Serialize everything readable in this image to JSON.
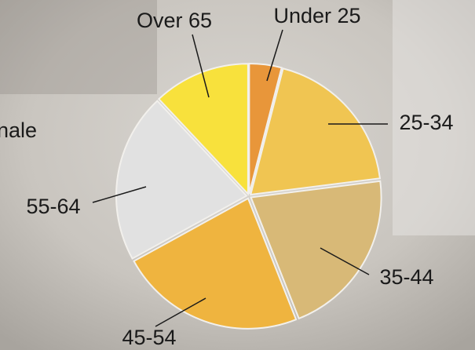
{
  "side_text": "nale",
  "chart_data": {
    "type": "pie",
    "categories": [
      "Under 25",
      "25-34",
      "35-44",
      "45-54",
      "55-64",
      "Over 65"
    ],
    "values": [
      4,
      19,
      21,
      23,
      21,
      12
    ],
    "colors": [
      "#e8963a",
      "#f0c552",
      "#d8b977",
      "#efb43f",
      "#e1e1e1",
      "#f8e13c"
    ]
  }
}
